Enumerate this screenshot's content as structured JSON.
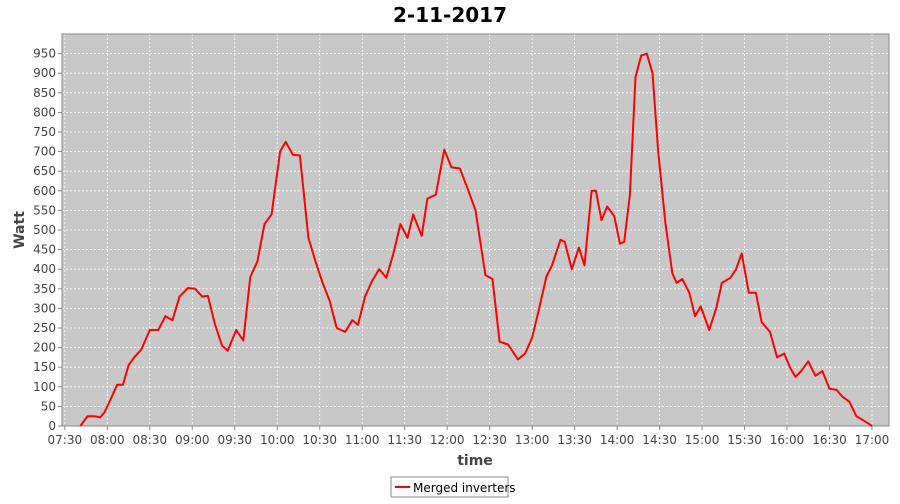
{
  "chart_data": {
    "type": "line",
    "title": "2-11-2017",
    "x_label": "time",
    "y_label": "Watt",
    "x": [
      "07:41",
      "07:46",
      "07:51",
      "07:55",
      "07:58",
      "08:02",
      "08:07",
      "08:11",
      "08:15",
      "08:19",
      "08:24",
      "08:30",
      "08:36",
      "08:41",
      "08:46",
      "08:51",
      "08:57",
      "09:02",
      "09:07",
      "09:11",
      "09:16",
      "09:21",
      "09:25",
      "09:31",
      "09:36",
      "09:41",
      "09:46",
      "09:51",
      "09:56",
      "10:02",
      "10:06",
      "10:11",
      "10:16",
      "10:22",
      "10:27",
      "10:32",
      "10:37",
      "10:42",
      "10:48",
      "10:53",
      "10:57",
      "11:02",
      "11:07",
      "11:12",
      "11:17",
      "11:22",
      "11:27",
      "11:32",
      "11:36",
      "11:42",
      "11:46",
      "11:52",
      "11:58",
      "12:03",
      "12:09",
      "12:15",
      "12:20",
      "12:27",
      "12:32",
      "12:37",
      "12:43",
      "12:50",
      "12:55",
      "13:00",
      "13:05",
      "13:10",
      "13:14",
      "13:20",
      "13:23",
      "13:28",
      "13:33",
      "13:37",
      "13:42",
      "13:45",
      "13:49",
      "13:53",
      "13:58",
      "14:02",
      "14:05",
      "14:09",
      "14:13",
      "14:17",
      "14:21",
      "14:25",
      "14:29",
      "14:34",
      "14:39",
      "14:42",
      "14:46",
      "14:51",
      "14:55",
      "14:59",
      "15:05",
      "15:10",
      "15:14",
      "15:20",
      "15:24",
      "15:28",
      "15:33",
      "15:38",
      "15:42",
      "15:48",
      "15:53",
      "15:58",
      "16:02",
      "16:06",
      "16:10",
      "16:15",
      "16:20",
      "16:25",
      "16:30",
      "16:35",
      "16:39",
      "16:44",
      "16:49",
      "16:55",
      "17:00"
    ],
    "series": [
      {
        "name": "Merged inverters",
        "color": "#ff0000",
        "values": [
          0,
          25,
          25,
          22,
          35,
          65,
          105,
          105,
          155,
          175,
          195,
          245,
          245,
          280,
          270,
          330,
          352,
          350,
          330,
          332,
          260,
          205,
          192,
          245,
          218,
          380,
          420,
          515,
          540,
          700,
          725,
          692,
          690,
          480,
          420,
          365,
          320,
          250,
          240,
          270,
          258,
          330,
          370,
          400,
          378,
          440,
          515,
          480,
          540,
          485,
          580,
          590,
          705,
          660,
          657,
          600,
          550,
          385,
          375,
          215,
          208,
          170,
          185,
          225,
          300,
          380,
          410,
          475,
          470,
          400,
          455,
          410,
          600,
          600,
          525,
          560,
          535,
          465,
          470,
          590,
          890,
          945,
          950,
          900,
          700,
          520,
          390,
          365,
          375,
          340,
          280,
          305,
          245,
          300,
          365,
          378,
          400,
          440,
          340,
          340,
          265,
          240,
          175,
          185,
          150,
          125,
          140,
          165,
          128,
          140,
          95,
          92,
          75,
          62,
          25,
          12,
          0
        ]
      }
    ],
    "xlim": [
      "07:28",
      "17:12"
    ],
    "ylim": [
      0,
      1000
    ],
    "xticks": [
      "07:30",
      "08:00",
      "08:30",
      "09:00",
      "09:30",
      "10:00",
      "10:30",
      "11:00",
      "11:30",
      "12:00",
      "12:30",
      "13:00",
      "13:30",
      "14:00",
      "14:30",
      "15:00",
      "15:30",
      "16:00",
      "16:30",
      "17:00"
    ],
    "yticks": [
      0,
      50,
      100,
      150,
      200,
      250,
      300,
      350,
      400,
      450,
      500,
      550,
      600,
      650,
      700,
      750,
      800,
      850,
      900,
      950
    ],
    "grid": true,
    "legend": "bottom"
  }
}
